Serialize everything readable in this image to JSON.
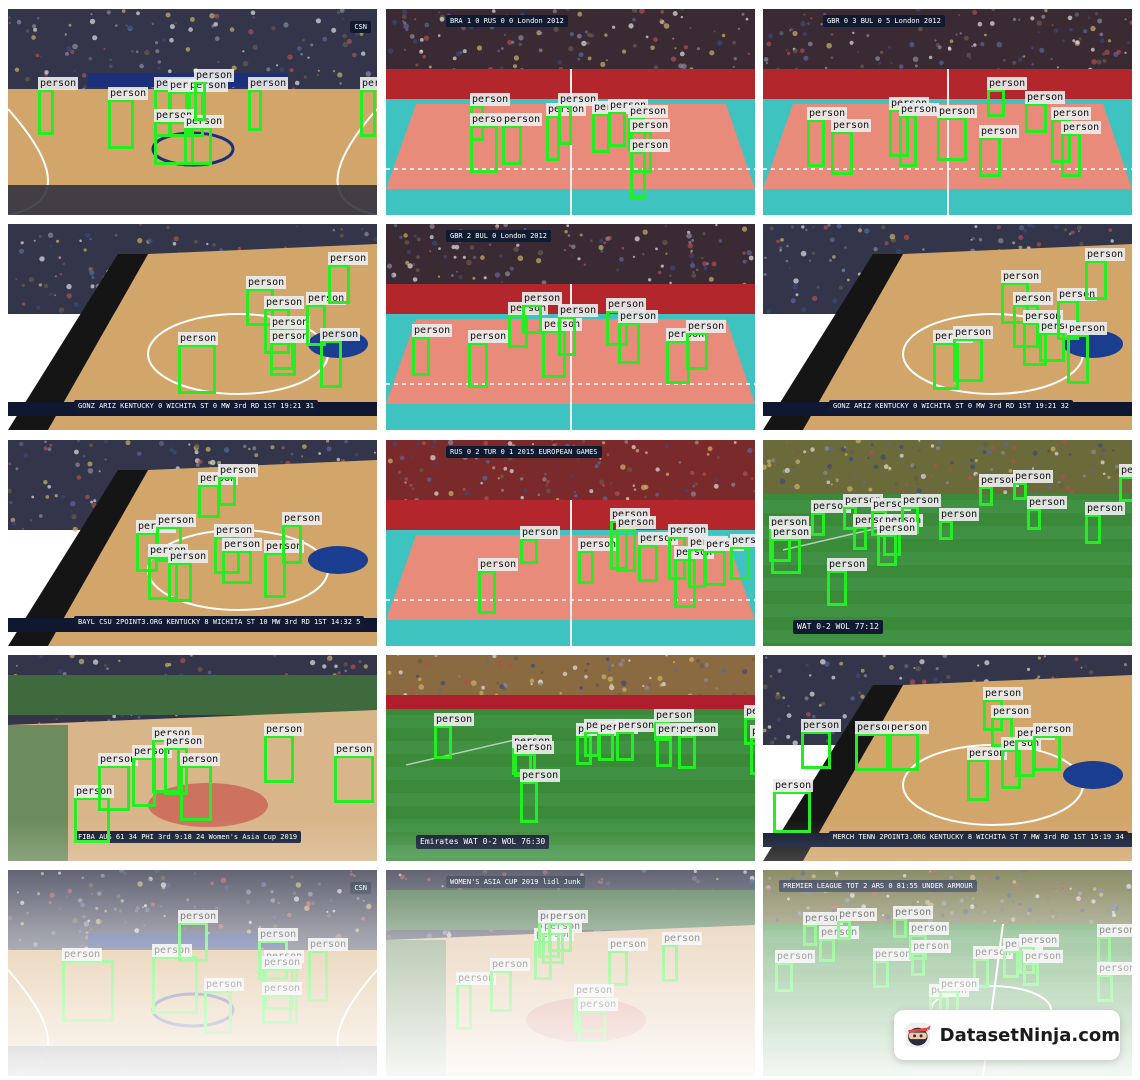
{
  "box_label": "person",
  "colors": {
    "box": "#22ee22",
    "court_wood": "#d2a56a",
    "court_teal": "#3fc3c0",
    "court_salmon": "#e88b7a",
    "pitch": "#3a8a3a",
    "crowd": "#33354a"
  },
  "watermark": {
    "text": "DatasetNinja.com",
    "icon": "ninja-logo-icon"
  },
  "tiles": [
    {
      "kind": "basketball",
      "overlay": [
        "CSN"
      ],
      "boxes": [
        [
          30,
          80,
          16,
          46
        ],
        [
          100,
          90,
          26,
          50
        ],
        [
          146,
          80,
          18,
          48
        ],
        [
          160,
          82,
          20,
          46
        ],
        [
          180,
          82,
          16,
          46
        ],
        [
          146,
          112,
          40,
          44
        ],
        [
          176,
          118,
          28,
          38
        ],
        [
          186,
          72,
          12,
          40
        ],
        [
          240,
          80,
          14,
          42
        ],
        [
          352,
          80,
          16,
          48
        ]
      ]
    },
    {
      "kind": "volleyball",
      "overlay": [
        "BRA",
        "1  0",
        "RUS",
        "0  0",
        "London 2012"
      ],
      "boxes": [
        [
          84,
          96,
          14,
          36
        ],
        [
          84,
          116,
          28,
          48
        ],
        [
          116,
          116,
          20,
          40
        ],
        [
          160,
          106,
          14,
          46
        ],
        [
          172,
          96,
          14,
          40
        ],
        [
          206,
          104,
          18,
          40
        ],
        [
          222,
          102,
          18,
          36
        ],
        [
          242,
          108,
          18,
          34
        ],
        [
          244,
          122,
          22,
          42
        ],
        [
          244,
          142,
          16,
          48
        ]
      ]
    },
    {
      "kind": "volleyball",
      "overlay": [
        "GBR",
        "0  3",
        "BUL",
        "0  5",
        "London 2012"
      ],
      "boxes": [
        [
          44,
          110,
          18,
          48
        ],
        [
          68,
          122,
          22,
          44
        ],
        [
          126,
          100,
          20,
          48
        ],
        [
          136,
          106,
          18,
          52
        ],
        [
          174,
          108,
          30,
          44
        ],
        [
          224,
          80,
          18,
          28
        ],
        [
          216,
          128,
          22,
          40
        ],
        [
          262,
          94,
          22,
          30
        ],
        [
          288,
          110,
          20,
          44
        ],
        [
          298,
          124,
          20,
          44
        ]
      ]
    },
    {
      "kind": "basketball_ncaa",
      "overlay": [
        "GONZ",
        "ARIZ",
        "KENTUCKY 0",
        "WICHITA ST 0",
        "MW 3rd RD",
        "1ST  19:21  31"
      ],
      "boxes": [
        [
          238,
          64,
          28,
          38
        ],
        [
          256,
          84,
          26,
          46
        ],
        [
          262,
          104,
          24,
          42
        ],
        [
          262,
          118,
          26,
          34
        ],
        [
          298,
          80,
          20,
          42
        ],
        [
          320,
          40,
          22,
          40
        ],
        [
          312,
          116,
          22,
          48
        ],
        [
          170,
          120,
          38,
          50
        ]
      ]
    },
    {
      "kind": "volleyball",
      "overlay": [
        "GBR",
        "2",
        "BUL",
        "0",
        "London 2012"
      ],
      "boxes": [
        [
          26,
          112,
          18,
          40
        ],
        [
          82,
          118,
          20,
          46
        ],
        [
          122,
          90,
          20,
          34
        ],
        [
          136,
          80,
          20,
          30
        ],
        [
          156,
          106,
          24,
          48
        ],
        [
          172,
          92,
          18,
          40
        ],
        [
          220,
          86,
          22,
          36
        ],
        [
          232,
          98,
          22,
          42
        ],
        [
          280,
          116,
          24,
          44
        ],
        [
          300,
          108,
          22,
          38
        ]
      ]
    },
    {
      "kind": "basketball_ncaa",
      "overlay": [
        "GONZ",
        "ARIZ",
        "KENTUCKY 0",
        "WICHITA ST 0",
        "MW 3rd RD",
        "1ST  19:21  32"
      ],
      "boxes": [
        [
          238,
          58,
          28,
          42
        ],
        [
          250,
          80,
          26,
          44
        ],
        [
          260,
          98,
          24,
          44
        ],
        [
          276,
          108,
          26,
          30
        ],
        [
          294,
          76,
          22,
          40
        ],
        [
          322,
          36,
          22,
          40
        ],
        [
          304,
          110,
          22,
          50
        ],
        [
          170,
          118,
          26,
          48
        ],
        [
          190,
          114,
          30,
          44
        ]
      ]
    },
    {
      "kind": "basketball_ncaa",
      "overlay": [
        "BAYL",
        "CSU",
        "2POINT3.ORG",
        "KENTUCKY 8",
        "WICHITA ST 10",
        "MW 3rd RD",
        "1ST  14:32  5"
      ],
      "boxes": [
        [
          190,
          44,
          22,
          34
        ],
        [
          210,
          36,
          18,
          30
        ],
        [
          128,
          92,
          22,
          40
        ],
        [
          148,
          86,
          26,
          36
        ],
        [
          140,
          116,
          30,
          44
        ],
        [
          160,
          122,
          24,
          40
        ],
        [
          206,
          96,
          26,
          38
        ],
        [
          214,
          110,
          30,
          34
        ],
        [
          256,
          112,
          22,
          46
        ],
        [
          274,
          84,
          20,
          40
        ]
      ]
    },
    {
      "kind": "volleyball_red",
      "overlay": [
        "RUS",
        "0  2",
        "TUR",
        "0  1",
        "2015 EUROPEAN GAMES"
      ],
      "boxes": [
        [
          92,
          130,
          18,
          44
        ],
        [
          134,
          98,
          18,
          26
        ],
        [
          192,
          110,
          16,
          34
        ],
        [
          224,
          80,
          18,
          50
        ],
        [
          230,
          88,
          20,
          44
        ],
        [
          252,
          104,
          20,
          38
        ],
        [
          282,
          96,
          18,
          44
        ],
        [
          288,
          118,
          22,
          50
        ],
        [
          302,
          108,
          18,
          40
        ],
        [
          318,
          110,
          22,
          36
        ],
        [
          344,
          106,
          20,
          34
        ]
      ]
    },
    {
      "kind": "soccer",
      "overlay": [
        "WAT",
        "0-2",
        "WOL",
        "77:12"
      ],
      "boxes": [
        [
          6,
          88,
          22,
          34
        ],
        [
          48,
          72,
          14,
          24
        ],
        [
          80,
          66,
          14,
          24
        ],
        [
          90,
          86,
          14,
          24
        ],
        [
          108,
          70,
          16,
          26
        ],
        [
          120,
          86,
          18,
          30
        ],
        [
          138,
          66,
          18,
          28
        ],
        [
          114,
          94,
          20,
          32
        ],
        [
          176,
          80,
          14,
          20
        ],
        [
          216,
          46,
          14,
          20
        ],
        [
          250,
          42,
          14,
          18
        ],
        [
          264,
          68,
          14,
          22
        ],
        [
          322,
          74,
          16,
          30
        ],
        [
          356,
          36,
          16,
          26
        ],
        [
          64,
          130,
          20,
          36
        ],
        [
          8,
          98,
          30,
          36
        ]
      ]
    },
    {
      "kind": "basketball_fiba",
      "overlay": [
        "FIBA",
        "AUS 61",
        "34 PHI",
        "3rd 9:18 24",
        "Women's Asia Cup 2019"
      ],
      "boxes": [
        [
          66,
          142,
          36,
          46
        ],
        [
          90,
          110,
          32,
          46
        ],
        [
          124,
          102,
          24,
          50
        ],
        [
          144,
          84,
          28,
          54
        ],
        [
          156,
          92,
          24,
          48
        ],
        [
          172,
          110,
          32,
          56
        ],
        [
          256,
          80,
          30,
          48
        ],
        [
          326,
          100,
          40,
          48
        ]
      ]
    },
    {
      "kind": "soccer_stadium",
      "overlay": [
        "Emirates",
        "WAT",
        "0-2",
        "WOL",
        "76:30"
      ],
      "boxes": [
        [
          48,
          70,
          18,
          34
        ],
        [
          126,
          92,
          20,
          28
        ],
        [
          128,
          98,
          22,
          24
        ],
        [
          134,
          126,
          18,
          42
        ],
        [
          190,
          80,
          16,
          30
        ],
        [
          198,
          76,
          16,
          26
        ],
        [
          212,
          78,
          16,
          28
        ],
        [
          230,
          76,
          18,
          30
        ],
        [
          268,
          66,
          16,
          20
        ],
        [
          270,
          80,
          16,
          32
        ],
        [
          292,
          80,
          18,
          34
        ],
        [
          358,
          62,
          16,
          28
        ],
        [
          364,
          82,
          16,
          38
        ]
      ]
    },
    {
      "kind": "basketball_ncaa",
      "overlay": [
        "MERCH",
        "TENN",
        "2POINT3.ORG",
        "KENTUCKY 8",
        "WICHITA ST 7",
        "MW 3rd RD",
        "1ST  15:19  34"
      ],
      "boxes": [
        [
          10,
          136,
          38,
          42
        ],
        [
          38,
          76,
          30,
          38
        ],
        [
          92,
          78,
          34,
          38
        ],
        [
          126,
          78,
          30,
          38
        ],
        [
          204,
          104,
          22,
          42
        ],
        [
          220,
          44,
          20,
          32
        ],
        [
          228,
          62,
          22,
          30
        ],
        [
          238,
          94,
          20,
          40
        ],
        [
          252,
          84,
          20,
          38
        ],
        [
          270,
          80,
          28,
          36
        ]
      ]
    },
    {
      "kind": "basketball",
      "overlay": [
        "CSN"
      ],
      "boxes": [
        [
          54,
          90,
          52,
          62
        ],
        [
          144,
          86,
          46,
          58
        ],
        [
          170,
          52,
          30,
          40
        ],
        [
          196,
          120,
          28,
          44
        ],
        [
          250,
          70,
          30,
          40
        ],
        [
          256,
          92,
          30,
          48
        ],
        [
          254,
          98,
          36,
          56
        ],
        [
          300,
          80,
          20,
          52
        ],
        [
          254,
          124,
          30,
          30
        ]
      ]
    },
    {
      "kind": "basketball_fiba_court",
      "overlay": [
        "WOMEN'S ASIA CUP 2019",
        "lidl",
        "Junk"
      ],
      "boxes": [
        [
          70,
          114,
          16,
          46
        ],
        [
          104,
          100,
          22,
          42
        ],
        [
          148,
          70,
          18,
          40
        ],
        [
          152,
          52,
          22,
          36
        ],
        [
          156,
          62,
          22,
          32
        ],
        [
          162,
          52,
          24,
          30
        ],
        [
          222,
          80,
          20,
          36
        ],
        [
          188,
          126,
          32,
          36
        ],
        [
          192,
          140,
          28,
          32
        ],
        [
          276,
          74,
          16,
          38
        ]
      ]
    },
    {
      "kind": "soccer_premier",
      "overlay": [
        "PREMIER LEAGUE",
        "TOT 2",
        "ARS 0",
        "81:55",
        "UNDER ARMOUR"
      ],
      "boxes": [
        [
          12,
          92,
          18,
          30
        ],
        [
          40,
          54,
          14,
          22
        ],
        [
          56,
          68,
          16,
          24
        ],
        [
          74,
          50,
          14,
          20
        ],
        [
          110,
          90,
          16,
          28
        ],
        [
          130,
          48,
          14,
          20
        ],
        [
          146,
          64,
          18,
          26
        ],
        [
          148,
          82,
          14,
          24
        ],
        [
          210,
          88,
          16,
          30
        ],
        [
          240,
          80,
          16,
          28
        ],
        [
          256,
          76,
          16,
          28
        ],
        [
          260,
          92,
          16,
          24
        ],
        [
          334,
          66,
          14,
          28
        ],
        [
          334,
          104,
          16,
          28
        ],
        [
          166,
          126,
          20,
          34
        ],
        [
          176,
          120,
          20,
          32
        ]
      ]
    }
  ]
}
